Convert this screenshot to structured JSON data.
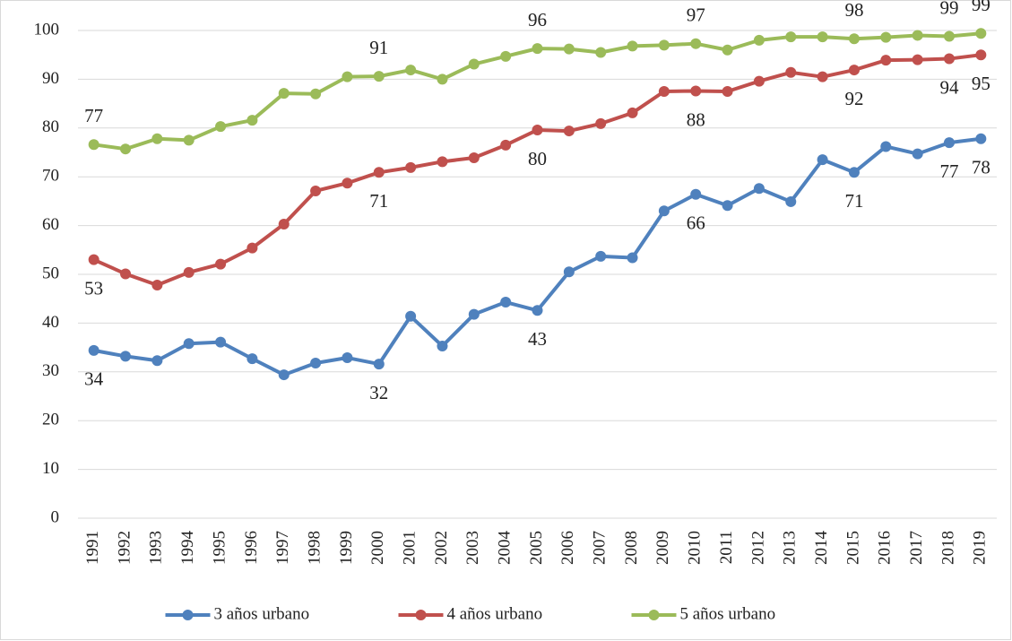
{
  "chart_data": {
    "type": "line",
    "categories": [
      "1991",
      "1992",
      "1993",
      "1994",
      "1995",
      "1996",
      "1997",
      "1998",
      "1999",
      "2000",
      "2001",
      "2002",
      "2003",
      "2004",
      "2005",
      "2006",
      "2007",
      "2008",
      "2009",
      "2010",
      "2011",
      "2012",
      "2013",
      "2014",
      "2015",
      "2016",
      "2017",
      "2018",
      "2019"
    ],
    "series": [
      {
        "name": "3 años urbano",
        "color": "#4f81bd",
        "values": [
          34.4,
          33.2,
          32.3,
          35.8,
          36.1,
          32.7,
          29.4,
          31.8,
          32.9,
          31.6,
          41.4,
          35.3,
          41.8,
          44.3,
          42.6,
          50.5,
          53.7,
          53.4,
          63.0,
          66.4,
          64.1,
          67.6,
          64.9,
          73.5,
          70.9,
          76.2,
          74.7,
          77.0,
          77.8
        ],
        "value_labels": [
          "34",
          null,
          null,
          null,
          null,
          null,
          null,
          null,
          null,
          "32",
          null,
          null,
          null,
          null,
          "43",
          null,
          null,
          null,
          null,
          "66",
          null,
          null,
          null,
          null,
          "71",
          null,
          null,
          "77",
          "78"
        ]
      },
      {
        "name": "4 años urbano",
        "color": "#c0504d",
        "values": [
          53.0,
          50.1,
          47.8,
          50.4,
          52.1,
          55.4,
          60.3,
          67.1,
          68.7,
          70.9,
          71.9,
          73.1,
          73.9,
          76.5,
          79.6,
          79.4,
          80.9,
          83.1,
          87.5,
          87.6,
          87.5,
          89.6,
          91.4,
          90.5,
          91.9,
          93.9,
          94.0,
          94.2,
          95.0
        ],
        "value_labels": [
          "53",
          null,
          null,
          null,
          null,
          null,
          null,
          null,
          null,
          "71",
          null,
          null,
          null,
          null,
          "80",
          null,
          null,
          null,
          null,
          "88",
          null,
          null,
          null,
          null,
          "92",
          null,
          null,
          "94",
          "95"
        ]
      },
      {
        "name": "5 años urbano",
        "color": "#9bbb59",
        "values": [
          76.6,
          75.7,
          77.8,
          77.5,
          80.3,
          81.6,
          87.1,
          87.0,
          90.5,
          90.6,
          91.9,
          90.0,
          93.1,
          94.7,
          96.3,
          96.2,
          95.5,
          96.8,
          97.0,
          97.3,
          96.0,
          98.0,
          98.7,
          98.7,
          98.3,
          98.6,
          99.0,
          98.8,
          99.4
        ],
        "value_labels": [
          "77",
          null,
          null,
          null,
          null,
          null,
          null,
          null,
          null,
          "91",
          null,
          null,
          null,
          null,
          "96",
          null,
          null,
          null,
          null,
          "97",
          null,
          null,
          null,
          null,
          "98",
          null,
          null,
          "99",
          "99"
        ]
      }
    ],
    "ylim": [
      0,
      100
    ],
    "yticks": [
      0,
      10,
      20,
      30,
      40,
      50,
      60,
      70,
      80,
      90,
      100
    ],
    "grid": true,
    "legend": "bottom"
  }
}
